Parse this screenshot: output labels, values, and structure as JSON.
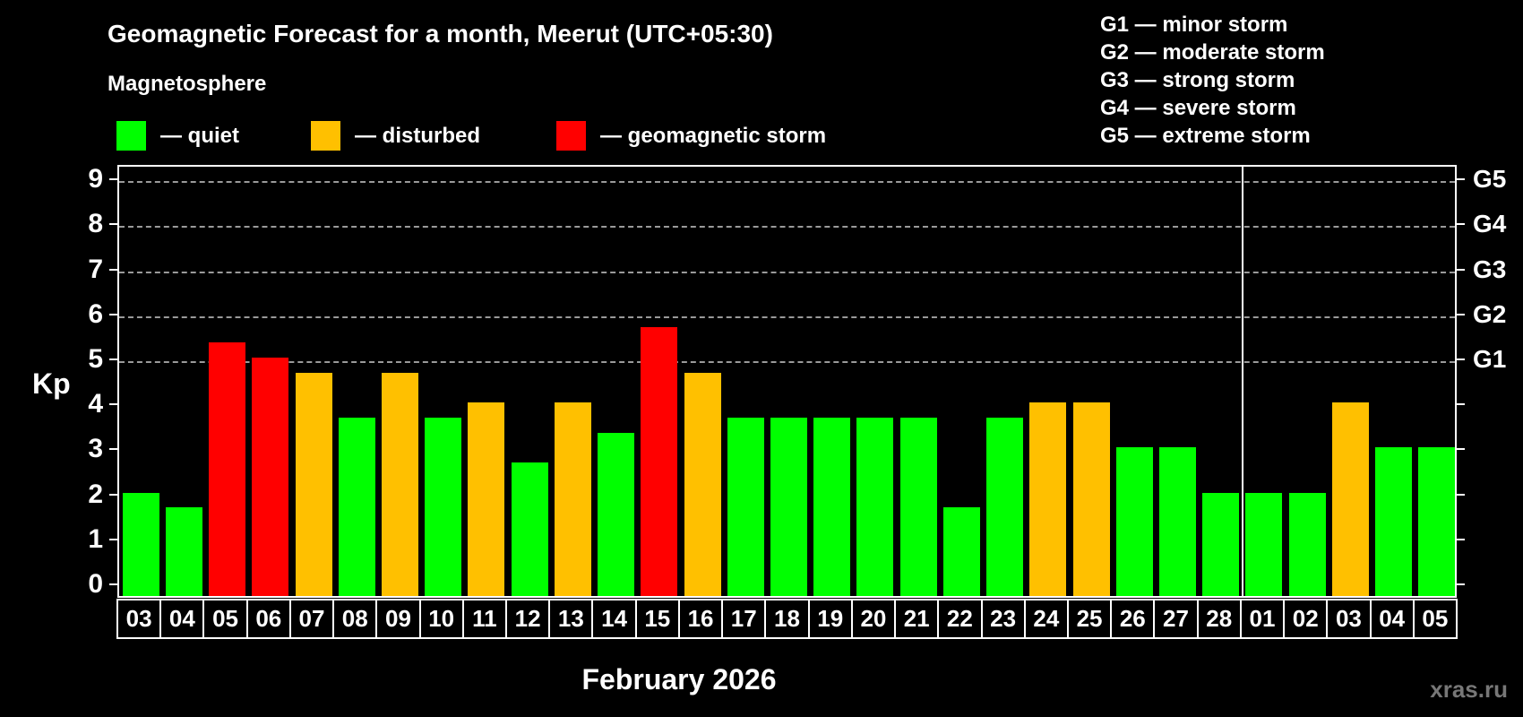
{
  "title": "Geomagnetic Forecast for a month, Meerut (UTC+05:30)",
  "subtitle": "Magnetosphere",
  "legend": [
    {
      "key": "quiet",
      "label": "— quiet",
      "color": "#00ff00"
    },
    {
      "key": "disturbed",
      "label": "— disturbed",
      "color": "#ffc000"
    },
    {
      "key": "storm",
      "label": "— geomagnetic storm",
      "color": "#ff0000"
    }
  ],
  "g_scale_legend": [
    "G1 — minor storm",
    "G2 — moderate storm",
    "G3 — strong storm",
    "G4 — severe storm",
    "G5 — extreme storm"
  ],
  "y_axis": {
    "label": "Kp"
  },
  "x_axis": {
    "month_label": "February 2026"
  },
  "watermark": "xras.ru",
  "chart_data": {
    "type": "bar",
    "title": "Geomagnetic Forecast for a month, Meerut (UTC+05:30)",
    "xlabel": "February 2026",
    "ylabel": "Kp",
    "ylim": [
      0,
      9
    ],
    "grid": "dashed horizontal lines at Kp 5-9 (G1-G5 levels)",
    "y_ticks": [
      0,
      1,
      2,
      3,
      4,
      5,
      6,
      7,
      8,
      9
    ],
    "g_levels": [
      {
        "label": "G1",
        "kp": 5
      },
      {
        "label": "G2",
        "kp": 6
      },
      {
        "label": "G3",
        "kp": 7
      },
      {
        "label": "G4",
        "kp": 8
      },
      {
        "label": "G5",
        "kp": 9
      }
    ],
    "colors": {
      "quiet": "#00ff00",
      "disturbed": "#ffc000",
      "storm": "#ff0000"
    },
    "separator_before_index": 26,
    "points": [
      {
        "day": "03",
        "kp": 2.0,
        "status": "quiet"
      },
      {
        "day": "04",
        "kp": 1.67,
        "status": "quiet"
      },
      {
        "day": "05",
        "kp": 5.33,
        "status": "storm"
      },
      {
        "day": "06",
        "kp": 5.0,
        "status": "storm"
      },
      {
        "day": "07",
        "kp": 4.67,
        "status": "disturbed"
      },
      {
        "day": "08",
        "kp": 3.67,
        "status": "quiet"
      },
      {
        "day": "09",
        "kp": 4.67,
        "status": "disturbed"
      },
      {
        "day": "10",
        "kp": 3.67,
        "status": "quiet"
      },
      {
        "day": "11",
        "kp": 4.0,
        "status": "disturbed"
      },
      {
        "day": "12",
        "kp": 2.67,
        "status": "quiet"
      },
      {
        "day": "13",
        "kp": 4.0,
        "status": "disturbed"
      },
      {
        "day": "14",
        "kp": 3.33,
        "status": "quiet"
      },
      {
        "day": "15",
        "kp": 5.67,
        "status": "storm"
      },
      {
        "day": "16",
        "kp": 4.67,
        "status": "disturbed"
      },
      {
        "day": "17",
        "kp": 3.67,
        "status": "quiet"
      },
      {
        "day": "18",
        "kp": 3.67,
        "status": "quiet"
      },
      {
        "day": "19",
        "kp": 3.67,
        "status": "quiet"
      },
      {
        "day": "20",
        "kp": 3.67,
        "status": "quiet"
      },
      {
        "day": "21",
        "kp": 3.67,
        "status": "quiet"
      },
      {
        "day": "22",
        "kp": 1.67,
        "status": "quiet"
      },
      {
        "day": "23",
        "kp": 3.67,
        "status": "quiet"
      },
      {
        "day": "24",
        "kp": 4.0,
        "status": "disturbed"
      },
      {
        "day": "25",
        "kp": 4.0,
        "status": "disturbed"
      },
      {
        "day": "26",
        "kp": 3.0,
        "status": "quiet"
      },
      {
        "day": "27",
        "kp": 3.0,
        "status": "quiet"
      },
      {
        "day": "28",
        "kp": 2.0,
        "status": "quiet"
      },
      {
        "day": "01",
        "kp": 2.0,
        "status": "quiet"
      },
      {
        "day": "02",
        "kp": 2.0,
        "status": "quiet"
      },
      {
        "day": "03",
        "kp": 4.0,
        "status": "disturbed"
      },
      {
        "day": "04",
        "kp": 3.0,
        "status": "quiet"
      },
      {
        "day": "05",
        "kp": 3.0,
        "status": "quiet"
      }
    ]
  }
}
